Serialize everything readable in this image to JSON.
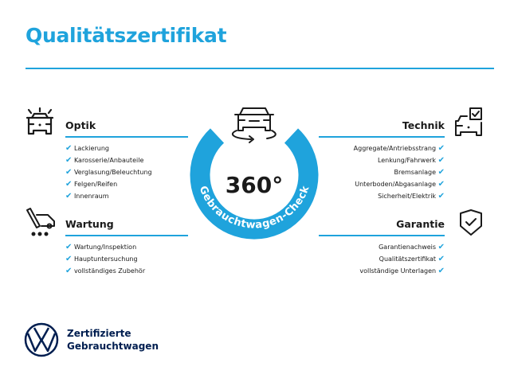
{
  "title": "Qualitätszertifikat",
  "colors": {
    "accent": "#1fa3dc",
    "brand_navy": "#001e50",
    "text": "#1a1a1a"
  },
  "center": {
    "value": "360°",
    "ring_text": "Gebrauchtwagen-Check",
    "icon": "rotating-car-icon"
  },
  "sections": {
    "optik": {
      "heading": "Optik",
      "icon": "car-lights-icon",
      "items": [
        "Lackierung",
        "Karosserie/Anbauteile",
        "Verglasung/Beleuchtung",
        "Felgen/Reifen",
        "Innenraum"
      ]
    },
    "wartung": {
      "heading": "Wartung",
      "icon": "service-van-icon",
      "items": [
        "Wartung/Inspektion",
        "Hauptuntersuchung",
        "vollständiges Zubehör"
      ]
    },
    "technik": {
      "heading": "Technik",
      "icon": "car-checklist-icon",
      "items": [
        "Aggregate/Antriebsstrang",
        "Lenkung/Fahrwerk",
        "Bremsanlage",
        "Unterboden/Abgasanlage",
        "Sicherheit/Elektrik"
      ]
    },
    "garantie": {
      "heading": "Garantie",
      "icon": "shield-check-icon",
      "items": [
        "Garantienachweis",
        "Qualitätszertifikat",
        "vollständige Unterlagen"
      ]
    }
  },
  "check_mark": "✔",
  "footer": {
    "line1": "Zertifizierte",
    "line2": "Gebrauchtwagen",
    "logo": "vw-logo"
  }
}
